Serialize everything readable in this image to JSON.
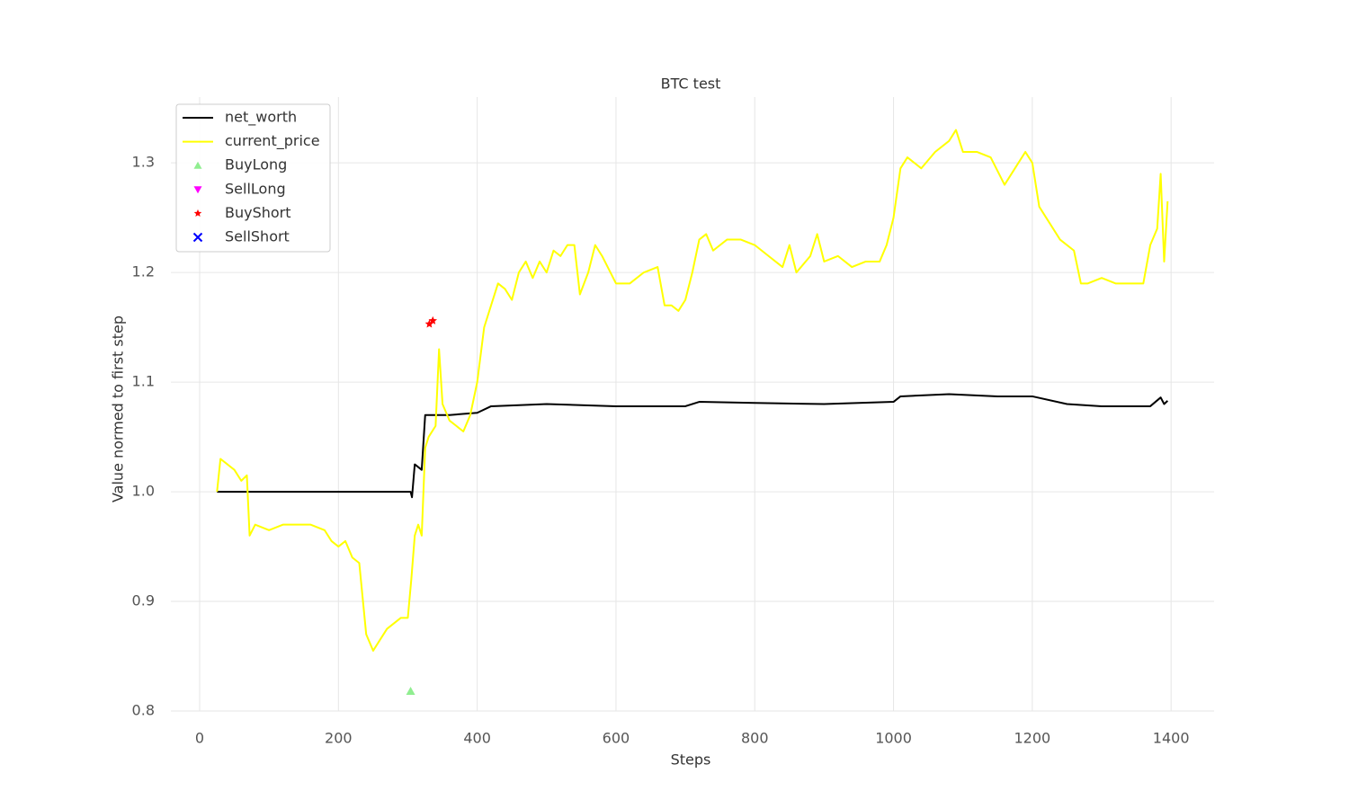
{
  "chart_data": {
    "type": "line",
    "title": "BTC test",
    "x_label": "Steps",
    "y_label": "Value normed to first step",
    "xlim": [
      -41.5,
      1462
    ],
    "ylim": [
      0.8,
      1.36
    ],
    "xticks": [
      0,
      200,
      400,
      600,
      800,
      1000,
      1200,
      1400
    ],
    "yticks": [
      0.8,
      0.9,
      {
        "value": 1,
        "label": "1.0"
      },
      1.1,
      1.2,
      1.3
    ],
    "grid": true,
    "legend": "upper left",
    "series": [
      {
        "name": "net_worth",
        "color": "#000000",
        "kind": "line",
        "x": [
          25,
          304,
          306,
          310,
          320,
          325,
          330,
          360,
          400,
          420,
          500,
          600,
          700,
          720,
          800,
          900,
          1000,
          1010,
          1080,
          1150,
          1200,
          1250,
          1300,
          1370,
          1385,
          1390,
          1395
        ],
        "values": [
          1.0,
          1.0,
          0.995,
          1.025,
          1.02,
          1.07,
          1.07,
          1.07,
          1.072,
          1.078,
          1.08,
          1.078,
          1.078,
          1.082,
          1.081,
          1.08,
          1.082,
          1.087,
          1.089,
          1.087,
          1.087,
          1.08,
          1.078,
          1.078,
          1.086,
          1.08,
          1.083
        ]
      },
      {
        "name": "current_price",
        "color": "#ffff00",
        "kind": "line",
        "x": [
          25,
          30,
          40,
          50,
          60,
          68,
          72,
          80,
          100,
          120,
          140,
          160,
          180,
          190,
          200,
          210,
          220,
          230,
          240,
          250,
          260,
          270,
          280,
          290,
          300,
          305,
          310,
          315,
          320,
          325,
          330,
          340,
          345,
          350,
          360,
          370,
          380,
          390,
          400,
          410,
          420,
          430,
          440,
          450,
          460,
          470,
          480,
          490,
          500,
          510,
          520,
          530,
          540,
          548,
          560,
          570,
          580,
          600,
          620,
          640,
          660,
          670,
          680,
          690,
          700,
          710,
          720,
          730,
          740,
          750,
          760,
          780,
          800,
          820,
          840,
          850,
          860,
          880,
          890,
          900,
          920,
          940,
          960,
          980,
          990,
          1000,
          1010,
          1020,
          1040,
          1060,
          1080,
          1090,
          1100,
          1120,
          1140,
          1160,
          1180,
          1190,
          1200,
          1210,
          1220,
          1240,
          1260,
          1270,
          1280,
          1300,
          1320,
          1340,
          1360,
          1370,
          1380,
          1385,
          1390,
          1395
        ],
        "values": [
          1.0,
          1.03,
          1.025,
          1.02,
          1.01,
          1.015,
          0.96,
          0.97,
          0.965,
          0.97,
          0.97,
          0.97,
          0.965,
          0.955,
          0.95,
          0.955,
          0.94,
          0.935,
          0.87,
          0.855,
          0.865,
          0.875,
          0.88,
          0.885,
          0.885,
          0.92,
          0.96,
          0.97,
          0.96,
          1.04,
          1.05,
          1.06,
          1.13,
          1.08,
          1.065,
          1.06,
          1.055,
          1.07,
          1.1,
          1.15,
          1.17,
          1.19,
          1.185,
          1.175,
          1.2,
          1.21,
          1.195,
          1.21,
          1.2,
          1.22,
          1.215,
          1.225,
          1.225,
          1.18,
          1.2,
          1.225,
          1.215,
          1.19,
          1.19,
          1.2,
          1.205,
          1.17,
          1.17,
          1.165,
          1.175,
          1.2,
          1.23,
          1.235,
          1.22,
          1.225,
          1.23,
          1.23,
          1.225,
          1.215,
          1.205,
          1.225,
          1.2,
          1.215,
          1.235,
          1.21,
          1.215,
          1.205,
          1.21,
          1.21,
          1.225,
          1.25,
          1.295,
          1.305,
          1.295,
          1.31,
          1.32,
          1.33,
          1.31,
          1.31,
          1.305,
          1.28,
          1.3,
          1.31,
          1.3,
          1.26,
          1.25,
          1.23,
          1.22,
          1.19,
          1.19,
          1.195,
          1.19,
          1.19,
          1.19,
          1.225,
          1.24,
          1.29,
          1.21,
          1.265
        ]
      },
      {
        "name": "BuyLong",
        "color": "#90ee90",
        "kind": "scatter",
        "marker": "triangle-up",
        "x": [
          304
        ],
        "values": [
          0.818
        ]
      },
      {
        "name": "SellLong",
        "color": "#ff00ff",
        "kind": "scatter",
        "marker": "triangle-down",
        "x": [],
        "values": []
      },
      {
        "name": "BuyShort",
        "color": "#ff0000",
        "kind": "scatter",
        "marker": "star",
        "x": [
          331,
          336
        ],
        "values": [
          1.153,
          1.156
        ]
      },
      {
        "name": "SellShort",
        "color": "#0000ff",
        "kind": "scatter",
        "marker": "x",
        "x": [],
        "values": []
      }
    ]
  }
}
